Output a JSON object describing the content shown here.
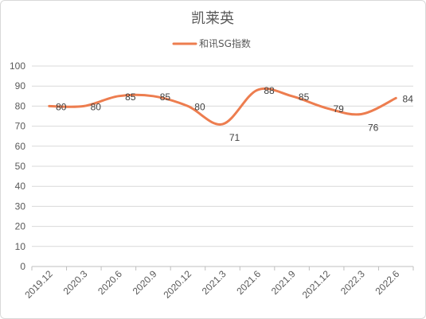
{
  "chart_data": {
    "type": "line",
    "title": "凯莱英",
    "categories": [
      "2019.12",
      "2020.3",
      "2020.6",
      "2020.9",
      "2020.12",
      "2021.3",
      "2021.6",
      "2021.9",
      "2021.12",
      "2022.3",
      "2022.6"
    ],
    "series": [
      {
        "name": "和讯SG指数",
        "values": [
          80,
          80,
          85,
          85,
          80,
          71,
          88,
          85,
          79,
          76,
          84
        ],
        "color": "#ED7D4F"
      }
    ],
    "ylim": [
      0,
      100
    ],
    "yticks": [
      0,
      10,
      20,
      30,
      40,
      50,
      60,
      70,
      80,
      90,
      100
    ],
    "grid": true,
    "legend": "top",
    "smooth": true,
    "data_labels": true
  }
}
